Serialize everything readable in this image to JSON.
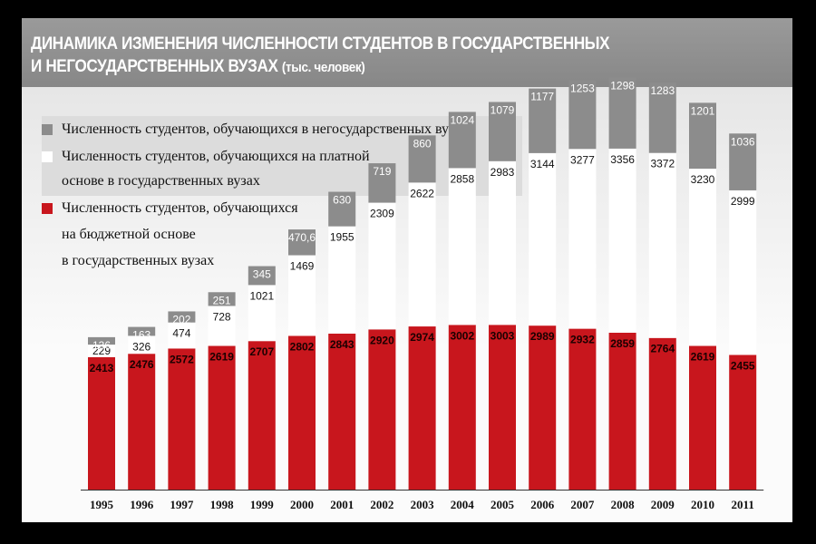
{
  "title_line1": "ДИНАМИКА ИЗМЕНЕНИЯ ЧИСЛЕННОСТИ СТУДЕНТОВ В ГОСУДАРСТВЕННЫХ",
  "title_line2": "И НЕГОСУДАРСТВЕННЫХ ВУЗАХ",
  "title_unit": "(тыс. человек)",
  "legend": [
    {
      "label": "Численность студентов, обучающихся в негосударственных вузах",
      "color": "#8c8c8c"
    },
    {
      "label_line1": "Численность студентов, обучающихся на платной",
      "label_line2": "основе в государственных вузах",
      "color": "#ffffff"
    },
    {
      "label_line1": "Численность студентов, обучающихся",
      "label_line2": "на бюджетной основе",
      "label_line3": "в государственных вузах",
      "color": "#c8161d"
    }
  ],
  "chart_data": {
    "type": "bar",
    "stacked": true,
    "title": "ДИНАМИКА ИЗМЕНЕНИЯ ЧИСЛЕННОСТИ СТУДЕНТОВ В ГОСУДАРСТВЕННЫХ И НЕГОСУДАРСТВЕННЫХ ВУЗАХ (тыс. человек)",
    "categories": [
      "1995",
      "1996",
      "1997",
      "1998",
      "1999",
      "2000",
      "2001",
      "2002",
      "2003",
      "2004",
      "2005",
      "2006",
      "2007",
      "2008",
      "2009",
      "2010",
      "2011"
    ],
    "series": [
      {
        "name": "Численность студентов, обучающихся на бюджетной основе в государственных вузах",
        "color": "#c8161d",
        "values": [
          2413,
          2476,
          2572,
          2619,
          2707,
          2802,
          2843,
          2920,
          2974,
          3002,
          3003,
          2989,
          2932,
          2859,
          2764,
          2619,
          2455
        ],
        "labels": [
          "2413",
          "2476",
          "2572",
          "2619",
          "2707",
          "2802",
          "2843",
          "2920",
          "2974",
          "3002",
          "3003",
          "2989",
          "2932",
          "2859",
          "2764",
          "2619",
          "2455"
        ]
      },
      {
        "name": "Численность студентов, обучающихся на платной основе в государственных вузах",
        "color": "#ffffff",
        "values": [
          229,
          326,
          474,
          728,
          1021,
          1469,
          1955,
          2309,
          2622,
          2858,
          2983,
          3144,
          3277,
          3356,
          3372,
          3230,
          2999
        ],
        "labels": [
          "229",
          "326",
          "474",
          "728",
          "1021",
          "1469",
          "1955",
          "2309",
          "2622",
          "2858",
          "2983",
          "3144",
          "3277",
          "3356",
          "3372",
          "3230",
          "2999"
        ]
      },
      {
        "name": "Численность студентов, обучающихся в негосударственных вузах",
        "color": "#8c8c8c",
        "values": [
          136,
          163,
          202,
          251,
          345,
          470.6,
          630,
          719,
          860,
          1024,
          1079,
          1177,
          1253,
          1298,
          1283,
          1201,
          1036
        ],
        "labels": [
          "136",
          "163",
          "202",
          "251",
          "345",
          "470,6",
          "630",
          "719",
          "860",
          "1024",
          "1079",
          "1177",
          "1253",
          "1298",
          "1283",
          "1201",
          "1036"
        ]
      }
    ],
    "xlabel": "",
    "ylabel": "",
    "ylim": [
      0,
      7800
    ]
  }
}
